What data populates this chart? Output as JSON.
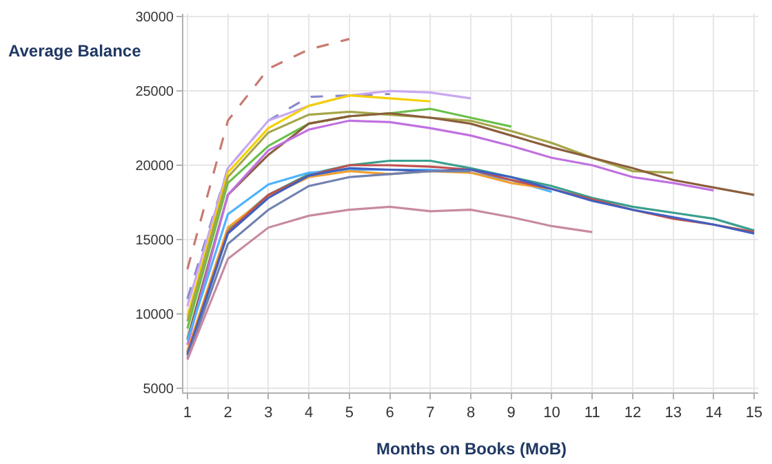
{
  "chart_data": {
    "type": "line",
    "xlabel": "Months on Books (MoB)",
    "ylabel": "Average Balance",
    "x": [
      1,
      2,
      3,
      4,
      5,
      6,
      7,
      8,
      9,
      10,
      11,
      12,
      13,
      14,
      15
    ],
    "xlim": [
      0.9,
      15.1
    ],
    "xticks": [
      1,
      2,
      3,
      4,
      5,
      6,
      7,
      8,
      9,
      10,
      11,
      12,
      13,
      14,
      15
    ],
    "ylim": [
      4700,
      30200
    ],
    "yticks": [
      5000,
      10000,
      15000,
      20000,
      25000,
      30000
    ],
    "grid": true,
    "marker": "none",
    "series": [
      {
        "color": "#c87a72",
        "line_style": "dashed",
        "values": [
          13000,
          23000,
          26500,
          27800,
          28500,
          null,
          null,
          null,
          null,
          null,
          null,
          null,
          null,
          null,
          null
        ]
      },
      {
        "color": "#8888cc",
        "line_style": "dashed",
        "values": [
          11000,
          19800,
          23000,
          24600,
          24700,
          24800,
          null,
          null,
          null,
          null,
          null,
          null,
          null,
          null,
          null
        ]
      },
      {
        "color": "#c8a8f0",
        "values": [
          10500,
          19800,
          23000,
          24000,
          24700,
          25000,
          24900,
          24500,
          null,
          null,
          null,
          null,
          null,
          null,
          null
        ]
      },
      {
        "color": "#f5d000",
        "values": [
          9800,
          19500,
          22500,
          24000,
          24700,
          24500,
          24300,
          null,
          null,
          null,
          null,
          null,
          null,
          null,
          null
        ]
      },
      {
        "color": "#6abf4b",
        "values": [
          9000,
          18800,
          21300,
          22800,
          23300,
          23500,
          23800,
          23200,
          22600,
          null,
          null,
          null,
          null,
          null,
          null
        ]
      },
      {
        "color": "#a6a64b",
        "values": [
          9500,
          19200,
          22200,
          23400,
          23600,
          23400,
          23200,
          23000,
          22300,
          21500,
          20500,
          19600,
          19500,
          null,
          null
        ]
      },
      {
        "color": "#8b5e3c",
        "values": [
          8300,
          18000,
          20700,
          22800,
          23300,
          23500,
          23200,
          22800,
          22000,
          21200,
          20500,
          19800,
          19000,
          18500,
          18000
        ]
      },
      {
        "color": "#c070e0",
        "values": [
          7900,
          18000,
          21000,
          22400,
          23000,
          22900,
          22500,
          22000,
          21300,
          20500,
          20000,
          19200,
          18800,
          18300,
          null
        ]
      },
      {
        "color": "#3a9e8e",
        "values": [
          7400,
          15700,
          18000,
          19400,
          20000,
          20300,
          20300,
          19800,
          19200,
          18600,
          17800,
          17200,
          16800,
          16400,
          15600
        ]
      },
      {
        "color": "#4db3ff",
        "values": [
          8200,
          16700,
          18700,
          19500,
          19700,
          19700,
          19700,
          19500,
          19000,
          18200,
          null,
          null,
          null,
          null,
          null
        ]
      },
      {
        "color": "#f0a030",
        "values": [
          7500,
          15800,
          17900,
          19200,
          19600,
          19400,
          19600,
          19500,
          18800,
          18400,
          null,
          null,
          null,
          null,
          null
        ]
      },
      {
        "color": "#c0504d",
        "values": [
          7300,
          15500,
          18000,
          19300,
          20000,
          20000,
          19900,
          19700,
          19000,
          18400,
          17700,
          17000,
          16400,
          16000,
          15500
        ]
      },
      {
        "color": "#4060c0",
        "values": [
          7200,
          15400,
          17800,
          19300,
          19800,
          19700,
          19600,
          19700,
          19200,
          18400,
          17600,
          17000,
          16500,
          16000,
          15400
        ]
      },
      {
        "color": "#7080b0",
        "values": [
          7000,
          14700,
          17000,
          18600,
          19200,
          19400,
          19600,
          19600,
          null,
          null,
          null,
          null,
          null,
          null,
          null
        ]
      },
      {
        "color": "#c88aa0",
        "values": [
          6900,
          13700,
          15800,
          16600,
          17000,
          17200,
          16900,
          17000,
          16500,
          15900,
          15500,
          null,
          null,
          null,
          null
        ]
      }
    ]
  }
}
